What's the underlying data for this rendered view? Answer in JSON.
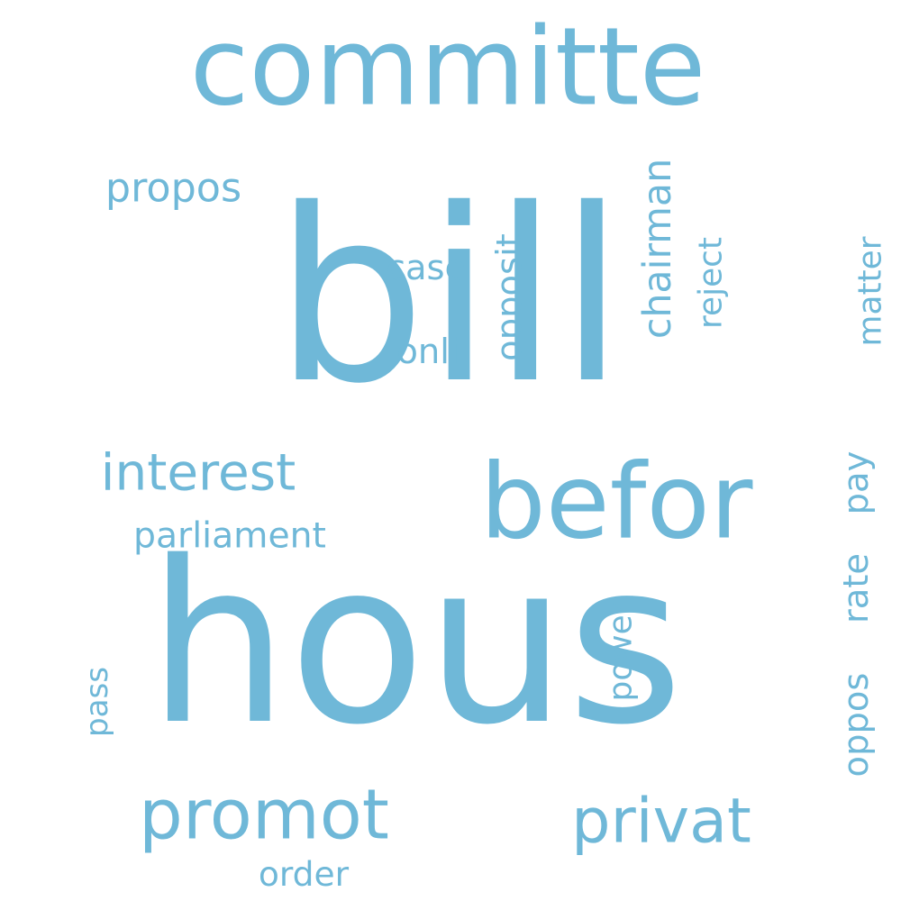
{
  "word_cloud": {
    "color": "#6fb8d8",
    "background": "#ffffff",
    "words": [
      {
        "key": "bill",
        "text": "bill"
      },
      {
        "key": "hous",
        "text": "hous"
      },
      {
        "key": "committe",
        "text": "committe"
      },
      {
        "key": "befor",
        "text": "befor"
      },
      {
        "key": "interest",
        "text": "interest"
      },
      {
        "key": "promot",
        "text": "promot"
      },
      {
        "key": "privat",
        "text": "privat"
      },
      {
        "key": "parliament",
        "text": "parliament"
      },
      {
        "key": "propos",
        "text": "propos"
      },
      {
        "key": "case",
        "text": "case"
      },
      {
        "key": "onli",
        "text": "onli"
      },
      {
        "key": "opposit",
        "text": "opposit"
      },
      {
        "key": "chairman",
        "text": "chairman"
      },
      {
        "key": "reject",
        "text": "reject"
      },
      {
        "key": "matter",
        "text": "matter"
      },
      {
        "key": "pay",
        "text": "pay"
      },
      {
        "key": "rate",
        "text": "rate"
      },
      {
        "key": "oppos",
        "text": "oppos"
      },
      {
        "key": "power",
        "text": "power"
      },
      {
        "key": "pass",
        "text": "pass"
      },
      {
        "key": "order",
        "text": "order"
      }
    ]
  }
}
